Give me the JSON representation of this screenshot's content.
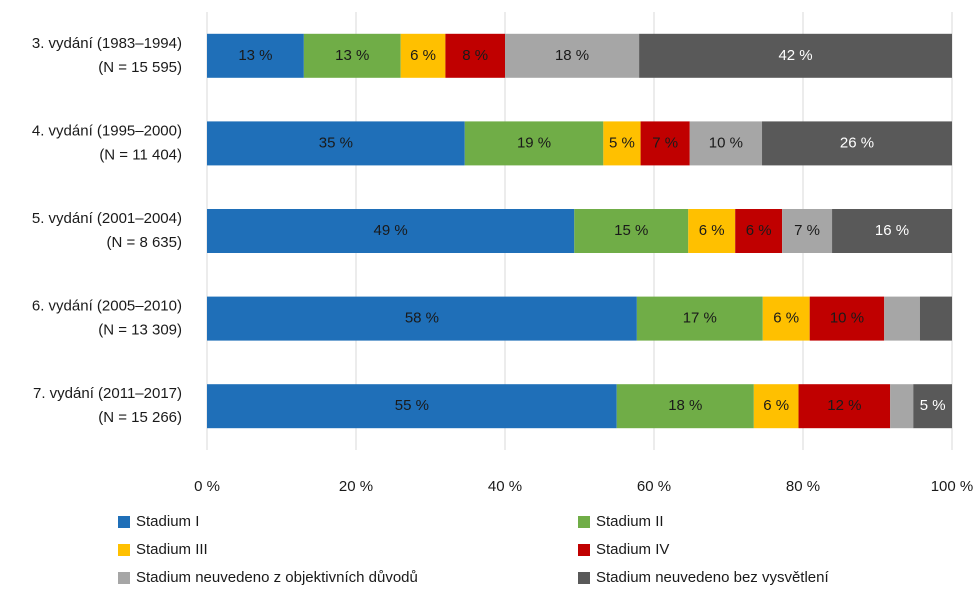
{
  "chart_data": {
    "type": "stacked-barh",
    "categories": [
      [
        "3. vydání (1983–1994)",
        "(N = 15 595)"
      ],
      [
        "4. vydání (1995–2000)",
        "(N = 11 404)"
      ],
      [
        "5. vydání (2001–2004)",
        "(N = 8 635)"
      ],
      [
        "6. vydání (2005–2010)",
        "(N = 13 309)"
      ],
      [
        "7. vydání (2011–2017)",
        "(N = 15 266)"
      ]
    ],
    "series": [
      {
        "name": "Stadium I",
        "color": "#1f6fb8",
        "values": [
          13,
          34.6,
          49.3,
          57.7,
          55.0
        ],
        "value_labels": [
          "13 %",
          "35 %",
          "49 %",
          "58 %",
          "55 %"
        ]
      },
      {
        "name": "Stadium II",
        "color": "#70ad47",
        "values": [
          13,
          18.6,
          15.3,
          16.9,
          18.4
        ],
        "value_labels": [
          "13 %",
          "19 %",
          "15 %",
          "17 %",
          "18 %"
        ]
      },
      {
        "name": "Stadium III",
        "color": "#ffc000",
        "values": [
          6,
          5.0,
          6.3,
          6.3,
          6.0
        ],
        "value_labels": [
          "6 %",
          "5 %",
          "6 %",
          "6 %",
          "6 %"
        ]
      },
      {
        "name": "Stadium IV",
        "color": "#c00000",
        "values": [
          8,
          6.6,
          6.3,
          10.0,
          12.3
        ],
        "value_labels": [
          "8 %",
          "7 %",
          "6 %",
          "10 %",
          "12 %"
        ]
      },
      {
        "name": "Stadium neuvedeno z objektivních důvodů",
        "color": "#a6a6a6",
        "values": [
          18,
          9.7,
          6.7,
          4.8,
          3.1
        ],
        "value_labels": [
          "18 %",
          "10 %",
          "7 %",
          null,
          null
        ]
      },
      {
        "name": "Stadium neuvedeno bez vysvětlení",
        "color": "#595959",
        "values": [
          42,
          25.5,
          16.1,
          4.3,
          5.2
        ],
        "value_labels": [
          "42 %",
          "26 %",
          "16 %",
          null,
          "5 %"
        ]
      }
    ],
    "xlim": [
      0,
      100
    ],
    "xticks": [
      {
        "value": 0,
        "label": "0 %"
      },
      {
        "value": 20,
        "label": "20 %"
      },
      {
        "value": 40,
        "label": "40 %"
      },
      {
        "value": 60,
        "label": "60 %"
      },
      {
        "value": 80,
        "label": "80 %"
      },
      {
        "value": 100,
        "label": "100 %"
      }
    ],
    "grid": true,
    "legend": "bottom"
  }
}
